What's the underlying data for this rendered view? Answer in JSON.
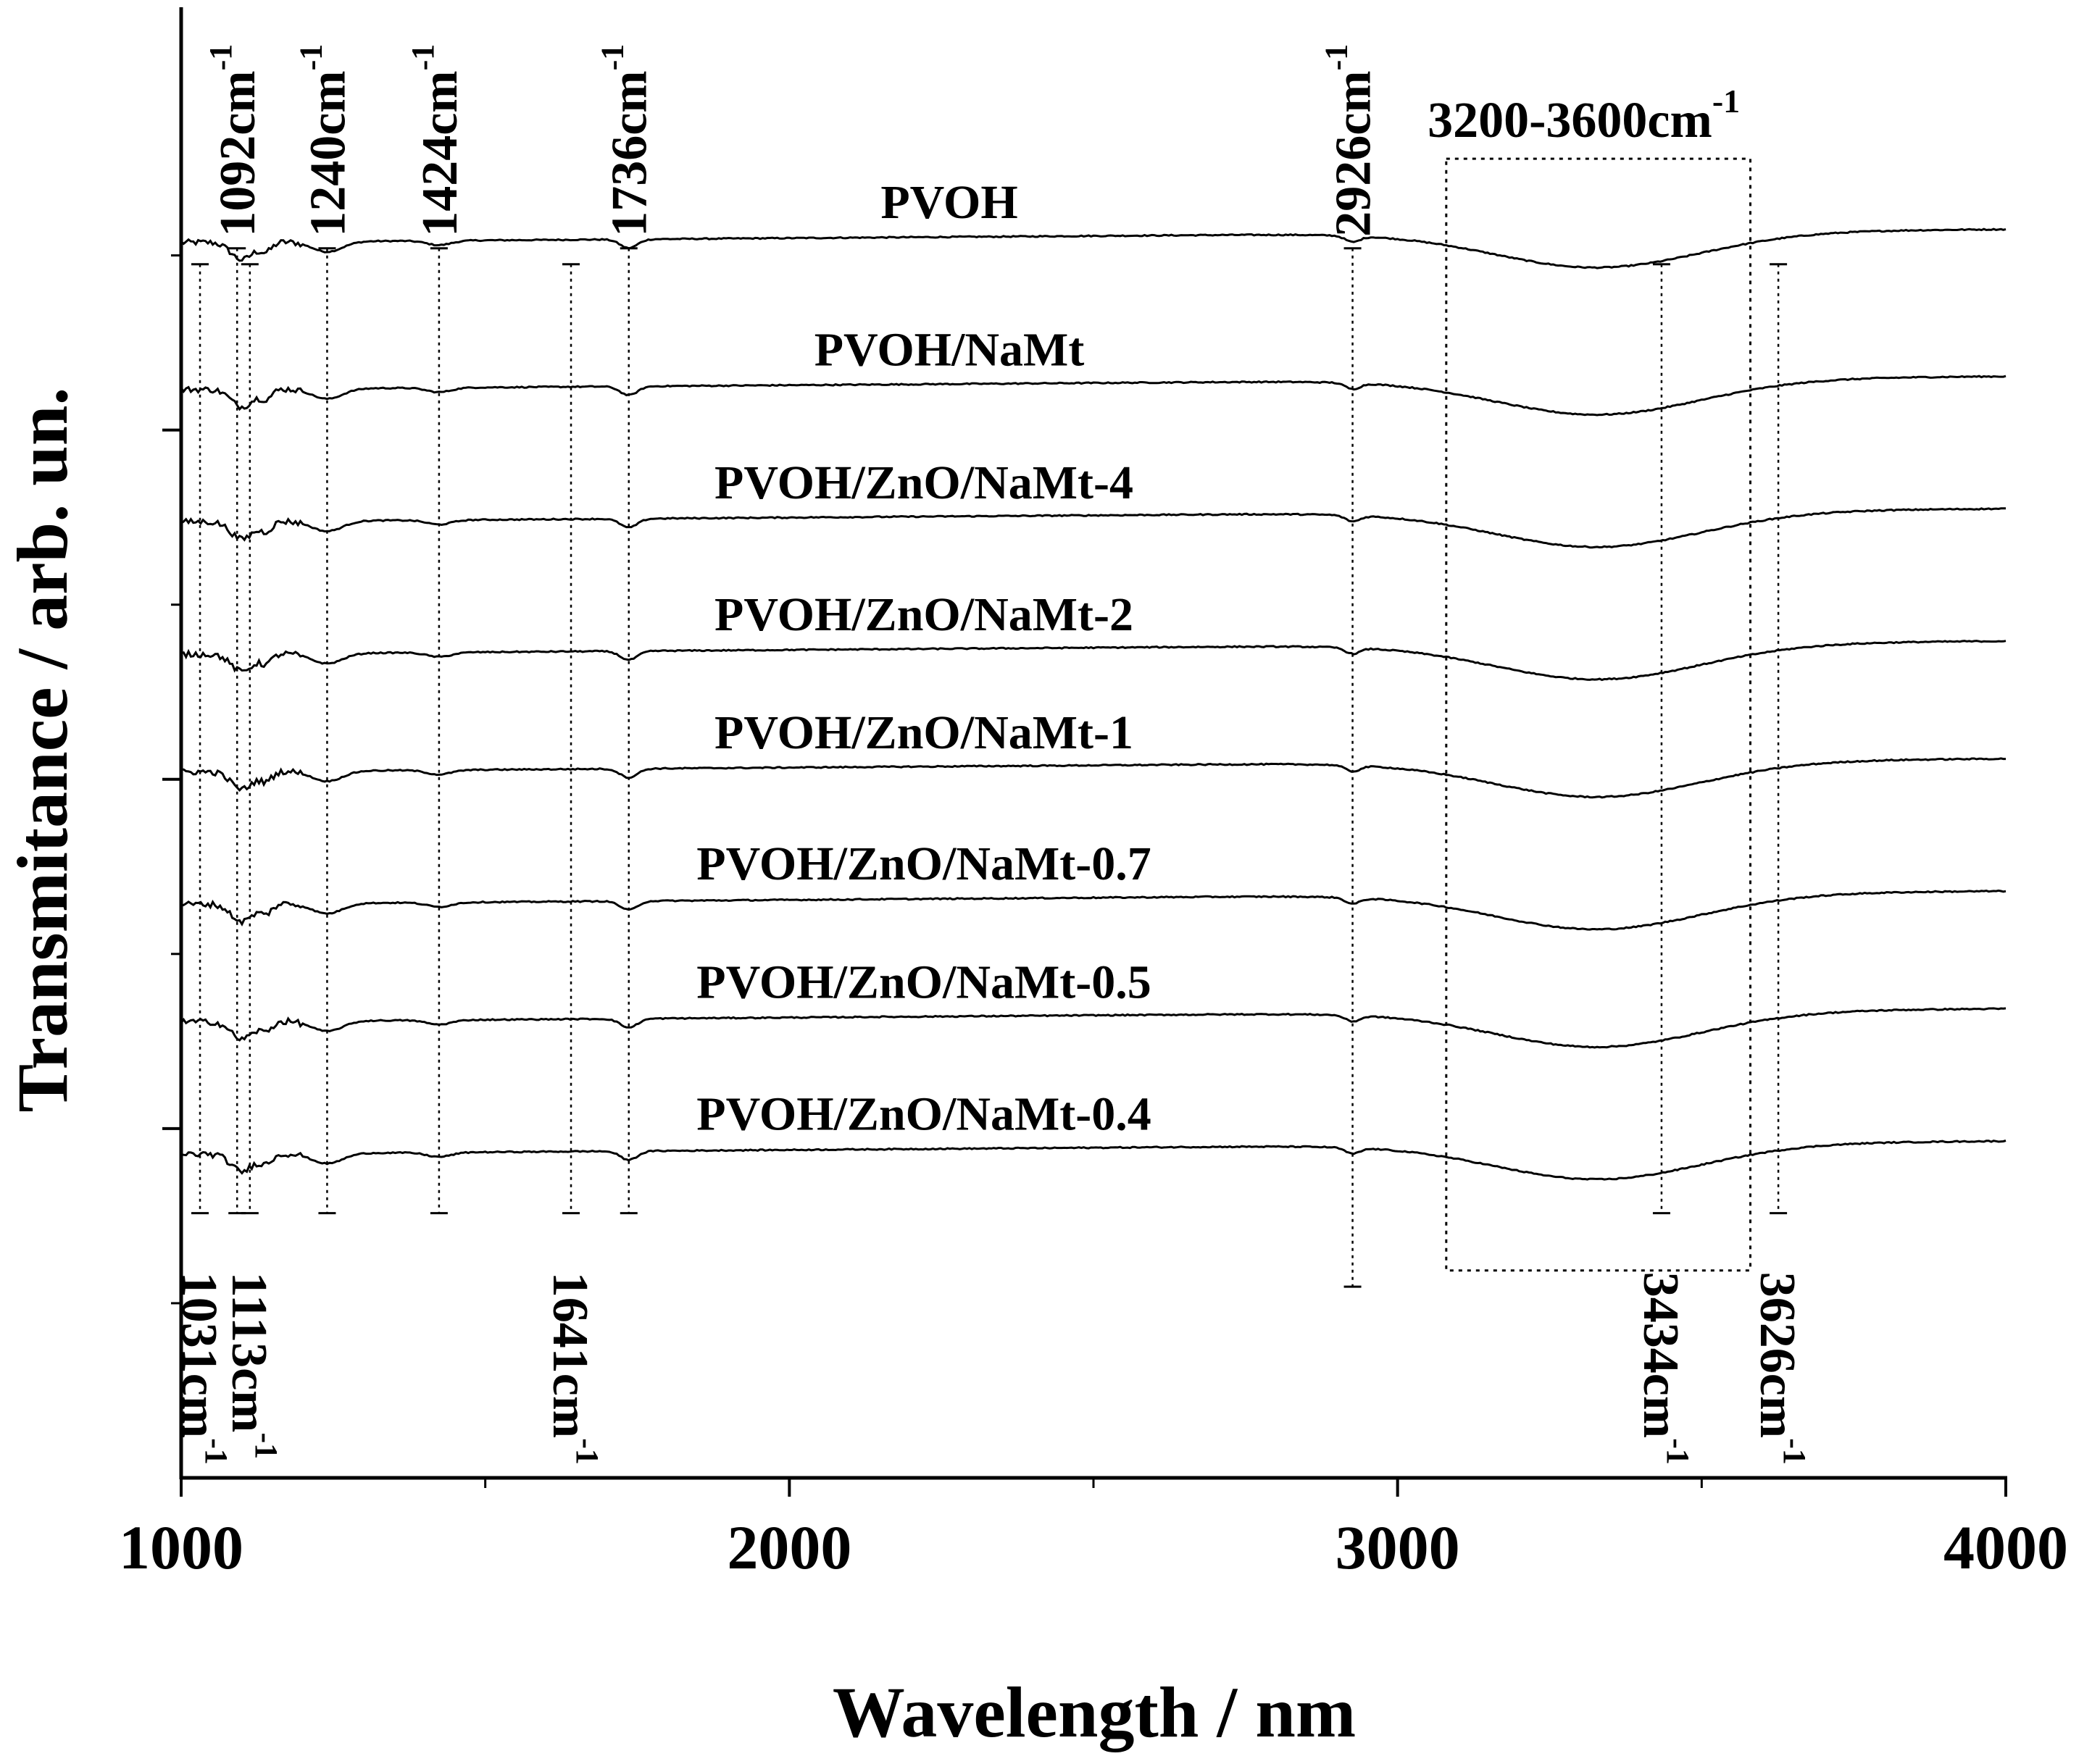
{
  "chart_data": {
    "type": "line",
    "title": "",
    "xlabel": "Wavelength / nm",
    "ylabel": "Transmitance / arb. un.",
    "xlim": [
      1000,
      4000
    ],
    "ylim": [
      0,
      1
    ],
    "xticks": [
      "1000",
      "2000",
      "3000",
      "4000"
    ],
    "yticks_visible": false,
    "grid": false,
    "series": [
      {
        "name": "PVOH",
        "label": "PVOH",
        "offset": 0.84
      },
      {
        "name": "PVOH/NaMt",
        "label": "PVOH/NaMt",
        "offset": 0.74
      },
      {
        "name": "PVOH/ZnO/NaMt-4",
        "label": "PVOH/ZnO/NaMt-4",
        "offset": 0.65
      },
      {
        "name": "PVOH/ZnO/NaMt-2",
        "label": "PVOH/ZnO/NaMt-2",
        "offset": 0.56
      },
      {
        "name": "PVOH/ZnO/NaMt-1",
        "label": "PVOH/ZnO/NaMt-1",
        "offset": 0.48
      },
      {
        "name": "PVOH/ZnO/NaMt-0.7",
        "label": "PVOH/ZnO/NaMt-0.7",
        "offset": 0.39
      },
      {
        "name": "PVOH/ZnO/NaMt-0.5",
        "label": "PVOH/ZnO/NaMt-0.5",
        "offset": 0.31
      },
      {
        "name": "PVOH/ZnO/NaMt-0.4",
        "label": "PVOH/ZnO/NaMt-0.4",
        "offset": 0.22
      }
    ],
    "annotations": [
      {
        "position": 1092,
        "num": "1092cm",
        "sup": "-1",
        "side": "top"
      },
      {
        "position": 1240,
        "num": "1240cm",
        "sup": "-1",
        "side": "top"
      },
      {
        "position": 1424,
        "num": "1424cm",
        "sup": "-1",
        "side": "top"
      },
      {
        "position": 1736,
        "num": "1736cm",
        "sup": "-1",
        "side": "top"
      },
      {
        "position": 2926,
        "num": "2926cm",
        "sup": "-1",
        "side": "top"
      },
      {
        "position": 1031,
        "num": "1031cm",
        "sup": "-1",
        "side": "bottom"
      },
      {
        "position": 1113,
        "num": "1113cm",
        "sup": "-1",
        "side": "bottom"
      },
      {
        "position": 1641,
        "num": "1641cm",
        "sup": "-1",
        "side": "bottom"
      },
      {
        "position": 3434,
        "num": "3434cm",
        "sup": "-1",
        "side": "bottom"
      },
      {
        "position": 3626,
        "num": "3626cm",
        "sup": "-1",
        "side": "bottom"
      }
    ],
    "region": {
      "from": 3080,
      "to": 3580,
      "num": "3200-3600cm",
      "sup": "-1"
    }
  }
}
